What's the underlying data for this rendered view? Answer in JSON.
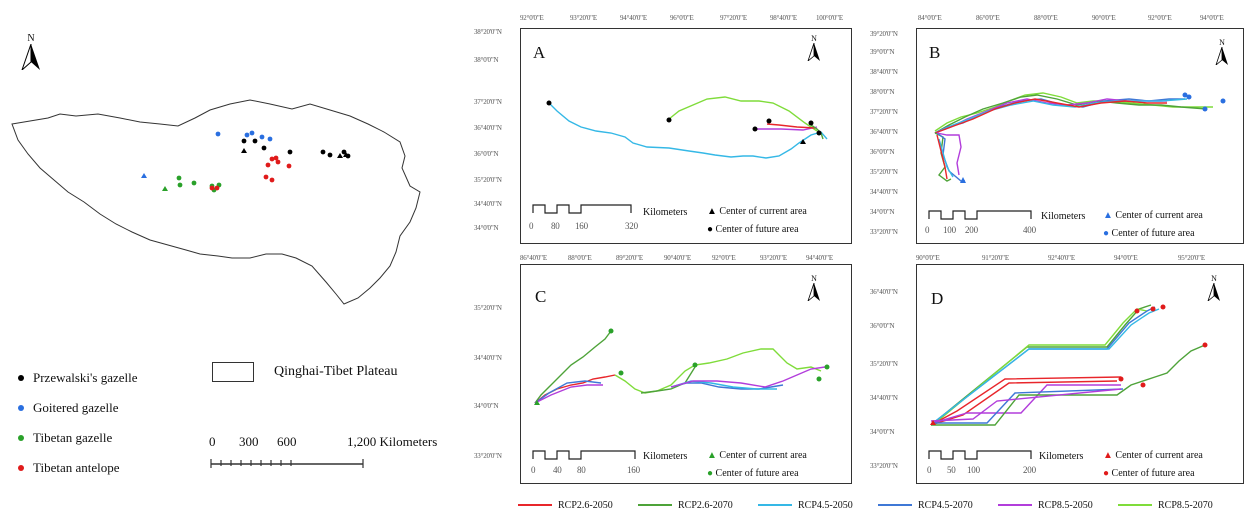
{
  "overview": {
    "north": "N",
    "legend": [
      {
        "label": "Przewalski's gazelle",
        "color": "#000000"
      },
      {
        "label": "Goitered gazelle",
        "color": "#2a6fe0"
      },
      {
        "label": "Tibetan gazelle",
        "color": "#2aa12a"
      },
      {
        "label": "Tibetan antelope",
        "color": "#e01b1b"
      }
    ],
    "region_label": "Qinghai-Tibet Plateau",
    "scale": {
      "ticks": [
        "0",
        "300",
        "600"
      ],
      "end": "1,200 Kilometers"
    }
  },
  "panels": {
    "A": {
      "label": "A",
      "top_ticks": [
        "92°0'0\"E",
        "93°20'0\"E",
        "94°40'0\"E",
        "96°0'0\"E",
        "97°20'0\"E",
        "98°40'0\"E",
        "100°0'0\"E"
      ],
      "left_ticks": [
        "38°20'0\"N",
        "38°0'0\"N",
        "37°20'0\"N",
        "36°40'0\"N",
        "36°0'0\"N",
        "35°20'0\"N",
        "34°40'0\"N",
        "34°0'0\"N"
      ],
      "scale": {
        "ticks": [
          "0",
          "80",
          "160",
          "320"
        ],
        "unit": "Kilometers"
      },
      "current": "Center of current area",
      "future": "Center of future area",
      "marker_color": "#000000"
    },
    "B": {
      "label": "B",
      "top_ticks": [
        "84°0'0\"E",
        "86°0'0\"E",
        "88°0'0\"E",
        "90°0'0\"E",
        "92°0'0\"E",
        "94°0'0\"E"
      ],
      "left_ticks": [
        "39°20'0\"N",
        "39°0'0\"N",
        "38°40'0\"N",
        "38°0'0\"N",
        "37°20'0\"N",
        "36°40'0\"N",
        "36°0'0\"N",
        "35°20'0\"N",
        "34°40'0\"N",
        "34°0'0\"N",
        "33°20'0\"N"
      ],
      "scale": {
        "ticks": [
          "0",
          "100",
          "200",
          "400"
        ],
        "unit": "Kilometers"
      },
      "current": "Center of current area",
      "future": "Center of future area",
      "marker_color": "#2a6fe0"
    },
    "C": {
      "label": "C",
      "top_ticks": [
        "86°40'0\"E",
        "88°0'0\"E",
        "89°20'0\"E",
        "90°40'0\"E",
        "92°0'0\"E",
        "93°20'0\"E",
        "94°40'0\"E"
      ],
      "left_ticks": [
        "35°20'0\"N",
        "34°40'0\"N",
        "34°0'0\"N",
        "33°20'0\"N"
      ],
      "scale": {
        "ticks": [
          "0",
          "40",
          "80",
          "160"
        ],
        "unit": "Kilometers"
      },
      "current": "Center of current area",
      "future": "Center of future area",
      "marker_color": "#2aa12a"
    },
    "D": {
      "label": "D",
      "top_ticks": [
        "90°0'0\"E",
        "91°20'0\"E",
        "92°40'0\"E",
        "94°0'0\"E",
        "95°20'0\"E"
      ],
      "left_ticks": [
        "36°40'0\"N",
        "36°0'0\"N",
        "35°20'0\"N",
        "34°40'0\"N",
        "34°0'0\"N",
        "33°20'0\"N"
      ],
      "scale": {
        "ticks": [
          "0",
          "50",
          "100",
          "200"
        ],
        "unit": "Kilometers"
      },
      "current": "Center of current area",
      "future": "Center of future area",
      "marker_color": "#e01b1b"
    }
  },
  "scenarios": [
    {
      "label": "RCP2.6-2050",
      "color": "#e8262b"
    },
    {
      "label": "RCP2.6-2070",
      "color": "#4ea339"
    },
    {
      "label": "RCP4.5-2050",
      "color": "#35b8e6"
    },
    {
      "label": "RCP4.5-2070",
      "color": "#3f78d6"
    },
    {
      "label": "RCP8.5-2050",
      "color": "#b23ddb"
    },
    {
      "label": "RCP8.5-2070",
      "color": "#7fdc3a"
    }
  ]
}
